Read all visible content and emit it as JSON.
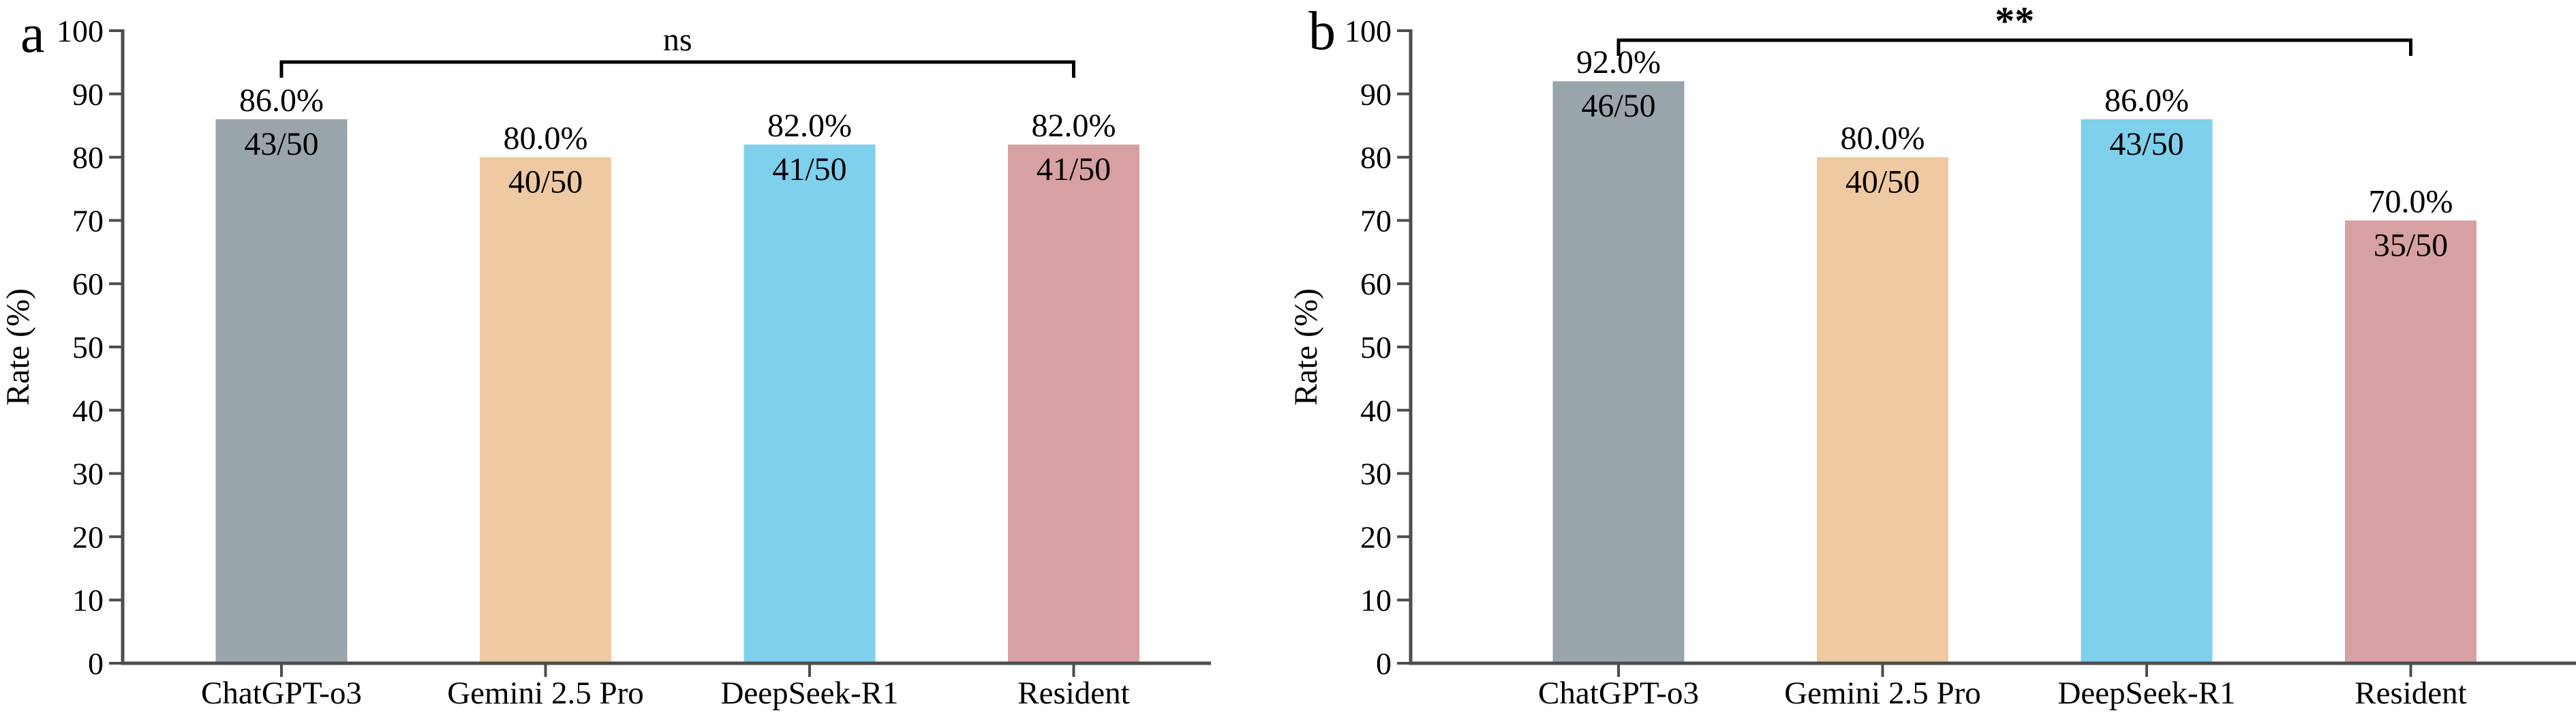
{
  "styles": {
    "background": "#ffffff",
    "axis_color": "#4d4d4d",
    "bracket_color": "#000000",
    "text_color": "#000000"
  },
  "chart_data": [
    {
      "type": "bar",
      "panel_label": "a",
      "title": "",
      "xlabel": "",
      "ylabel": "Rate (%)",
      "ylim": [
        0,
        100
      ],
      "ytick_step": 10,
      "grid": "off",
      "legend": "none",
      "categories": [
        "ChatGPT-o3",
        "Gemini 2.5 Pro",
        "DeepSeek-R1",
        "Resident"
      ],
      "values": [
        86.0,
        80.0,
        82.0,
        82.0
      ],
      "percent_labels": [
        "86.0%",
        "80.0%",
        "82.0%",
        "82.0%"
      ],
      "count_labels": [
        "43/50",
        "40/50",
        "41/50",
        "41/50"
      ],
      "bar_colors": [
        "#9aa5ab",
        "#eec9a1",
        "#7fd0ec",
        "#d7a1a3"
      ],
      "significance": {
        "label": "ns",
        "from_index": 0,
        "to_index": 3
      }
    },
    {
      "type": "bar",
      "panel_label": "b",
      "title": "",
      "xlabel": "",
      "ylabel": "Rate (%)",
      "ylim": [
        0,
        100
      ],
      "ytick_step": 10,
      "grid": "off",
      "legend": "none",
      "categories": [
        "ChatGPT-o3",
        "Gemini 2.5 Pro",
        "DeepSeek-R1",
        "Resident"
      ],
      "values": [
        92.0,
        80.0,
        86.0,
        70.0
      ],
      "percent_labels": [
        "92.0%",
        "80.0%",
        "86.0%",
        "70.0%"
      ],
      "count_labels": [
        "46/50",
        "40/50",
        "43/50",
        "35/50"
      ],
      "bar_colors": [
        "#9aa5ab",
        "#eec9a1",
        "#7fd0ec",
        "#d7a1a3"
      ],
      "significance": {
        "label": "**",
        "from_index": 0,
        "to_index": 3
      }
    }
  ]
}
